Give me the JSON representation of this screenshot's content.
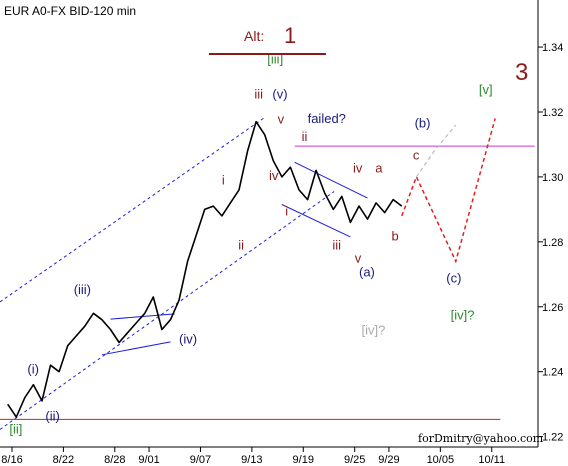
{
  "chart_data": {
    "type": "line",
    "title": "EUR A0-FX BID-120 min",
    "alt_label": "Alt:",
    "alt_number": "1",
    "big_wave": "3",
    "footer": "forDmitry@yahoo.com",
    "colors": {
      "price": "#000000",
      "blue_dashed": "#1e1edc",
      "magenta_level": "#cc33cc",
      "red_level": "#cc2222",
      "forecast_red": "#e02020",
      "forecast_grey": "#bbbbbb",
      "alt_bar": "#8b1a1a",
      "wave_dark_red": "#8b1a1a",
      "wave_green": "#2e8b2e",
      "wave_navy": "#1a1a80",
      "wave_grey": "#aaaaaa"
    },
    "x_ticks": [
      "8/16",
      "8/22",
      "8/28",
      "9/01",
      "9/07",
      "9/13",
      "9/19",
      "9/25",
      "9/29",
      "10/05",
      "10/11"
    ],
    "x_tick_index": [
      0,
      6,
      12,
      16,
      22,
      28,
      34,
      40,
      44,
      50,
      56
    ],
    "y_ticks": [
      1.22,
      1.24,
      1.26,
      1.28,
      1.3,
      1.32,
      1.34
    ],
    "ylim": [
      1.2168,
      1.3545
    ],
    "xlim": [
      -1.4,
      61.4
    ],
    "price_series": {
      "name": "EUR BID",
      "x": [
        -0.5,
        0.5,
        1.5,
        2.5,
        3.5,
        4.5,
        5.5,
        6.5,
        7.5,
        8.5,
        9.5,
        10.5,
        11.5,
        12.5,
        13.5,
        14.5,
        15.5,
        16.5,
        17.5,
        18.5,
        19.5,
        20.5,
        21.5,
        22.5,
        23.5,
        24.5,
        25.5,
        26.5,
        27.5,
        28.5,
        29.5,
        30.5,
        31.5,
        32.5,
        33.5,
        34.5,
        35.5,
        36.5,
        37.5,
        38.5,
        39.5,
        40.5,
        41.5,
        42.5,
        43.5,
        44.5,
        45.5
      ],
      "y": [
        1.23,
        1.226,
        1.232,
        1.236,
        1.231,
        1.242,
        1.24,
        1.248,
        1.251,
        1.254,
        1.258,
        1.256,
        1.253,
        1.249,
        1.252,
        1.255,
        1.258,
        1.263,
        1.253,
        1.256,
        1.262,
        1.274,
        1.282,
        1.29,
        1.291,
        1.288,
        1.292,
        1.296,
        1.308,
        1.317,
        1.313,
        1.305,
        1.3,
        1.303,
        1.296,
        1.293,
        1.302,
        1.295,
        1.29,
        1.294,
        1.286,
        1.291,
        1.287,
        1.292,
        1.289,
        1.293,
        1.291
      ]
    },
    "forecast_red": {
      "x": [
        45.5,
        47.2,
        51.8,
        56.4
      ],
      "y": [
        1.288,
        1.3,
        1.274,
        1.318
      ]
    },
    "forecast_grey": {
      "x": [
        47.2,
        49.3,
        51.8
      ],
      "y": [
        1.3,
        1.308,
        1.316
      ]
    },
    "level_lines": [
      {
        "name": "magenta-level",
        "y": 1.3095,
        "x1": 33.0,
        "x2": 61.0
      },
      {
        "name": "red-level",
        "y": 1.2253,
        "x1": -1.4,
        "x2": 57.0
      }
    ],
    "channel_lines": [
      {
        "name": "channel-upper",
        "x1": -1.4,
        "y1": 1.2615,
        "x2": 29.6,
        "y2": 1.3185
      },
      {
        "name": "channel-lower",
        "x1": -1.4,
        "y1": 1.2222,
        "x2": 37.6,
        "y2": 1.2955
      }
    ],
    "wedge_lines": [
      {
        "name": "wedge-upper",
        "x1": 11.5,
        "y1": 1.2562,
        "x2": 19.0,
        "y2": 1.2578
      },
      {
        "name": "wedge-lower",
        "x1": 10.5,
        "y1": 1.2452,
        "x2": 18.5,
        "y2": 1.2492
      },
      {
        "name": "correction-top",
        "x1": 33.0,
        "y1": 1.3045,
        "x2": 41.5,
        "y2": 1.2935
      },
      {
        "name": "correction-bottom",
        "x1": 31.5,
        "y1": 1.2915,
        "x2": 39.5,
        "y2": 1.2815
      }
    ],
    "wave_labels": [
      {
        "text": "[ii]",
        "x": -0.3,
        "y": 1.221,
        "color": "wave_green"
      },
      {
        "text": "(i)",
        "x": 1.8,
        "y": 1.2394,
        "color": "wave_navy"
      },
      {
        "text": "(ii)",
        "x": 3.9,
        "y": 1.225,
        "color": "wave_navy"
      },
      {
        "text": "(iii)",
        "x": 7.2,
        "y": 1.264,
        "color": "wave_navy"
      },
      {
        "text": "(iv)",
        "x": 19.5,
        "y": 1.2487,
        "color": "wave_navy"
      },
      {
        "text": "i",
        "x": 24.5,
        "y": 1.2977,
        "color": "wave_dark_red"
      },
      {
        "text": "ii",
        "x": 26.4,
        "y": 1.2777,
        "color": "wave_dark_red"
      },
      {
        "text": "iii",
        "x": 28.3,
        "y": 1.3242,
        "color": "wave_dark_red"
      },
      {
        "text": "(v)",
        "x": 30.4,
        "y": 1.3242,
        "color": "wave_navy"
      },
      {
        "text": "[iii]",
        "x": 29.8,
        "y": 1.3349,
        "color": "wave_green"
      },
      {
        "text": "iv",
        "x": 30.0,
        "y": 1.2991,
        "color": "wave_dark_red"
      },
      {
        "text": "v",
        "x": 31.0,
        "y": 1.3164,
        "color": "wave_dark_red"
      },
      {
        "text": "failed?",
        "x": 34.5,
        "y": 1.3166,
        "color": "wave_navy"
      },
      {
        "text": "ii",
        "x": 33.8,
        "y": 1.3111,
        "color": "wave_dark_red"
      },
      {
        "text": "i",
        "x": 31.9,
        "y": 1.2881,
        "color": "wave_dark_red"
      },
      {
        "text": "iii",
        "x": 37.4,
        "y": 1.2776,
        "color": "wave_dark_red"
      },
      {
        "text": "iv",
        "x": 39.8,
        "y": 1.3014,
        "color": "wave_dark_red"
      },
      {
        "text": "v",
        "x": 40.0,
        "y": 1.2736,
        "color": "wave_dark_red"
      },
      {
        "text": "a",
        "x": 42.4,
        "y": 1.3014,
        "color": "wave_dark_red"
      },
      {
        "text": "b",
        "x": 44.3,
        "y": 1.2804,
        "color": "wave_dark_red"
      },
      {
        "text": "c",
        "x": 46.8,
        "y": 1.3053,
        "color": "wave_dark_red"
      },
      {
        "text": "(a)",
        "x": 40.5,
        "y": 1.2694,
        "color": "wave_navy"
      },
      {
        "text": "(b)",
        "x": 47.0,
        "y": 1.3153,
        "color": "wave_navy"
      },
      {
        "text": "(c)",
        "x": 50.7,
        "y": 1.2675,
        "color": "wave_navy"
      },
      {
        "text": "[iv]?",
        "x": 51.2,
        "y": 1.256,
        "color": "wave_green"
      },
      {
        "text": "[iv]?",
        "x": 40.8,
        "y": 1.2514,
        "color": "wave_grey"
      },
      {
        "text": "[v]",
        "x": 54.5,
        "y": 1.3255,
        "color": "wave_green"
      }
    ]
  }
}
